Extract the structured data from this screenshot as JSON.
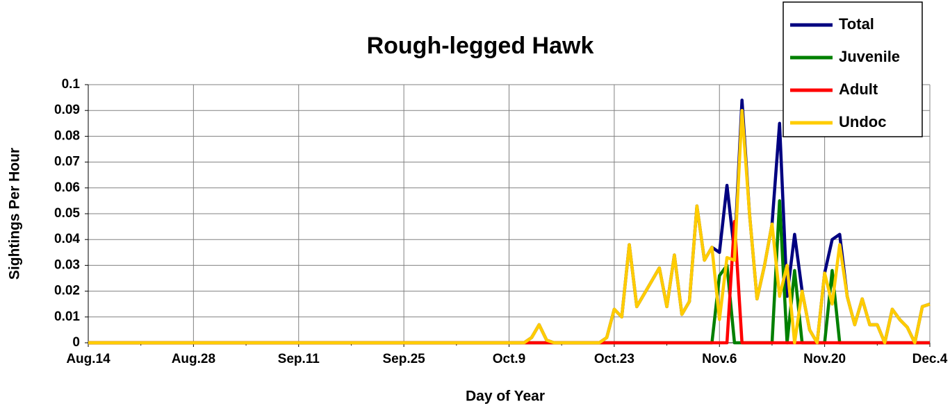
{
  "chart_data": {
    "type": "line",
    "title": "Rough-legged Hawk",
    "x_label": "Day of Year",
    "y_label": "Sightings Per Hour",
    "categories": [
      "Aug.14",
      null,
      null,
      null,
      null,
      null,
      null,
      null,
      null,
      null,
      null,
      null,
      null,
      null,
      "Aug.28",
      null,
      null,
      null,
      null,
      null,
      null,
      null,
      null,
      null,
      null,
      null,
      null,
      null,
      "Sep.11",
      null,
      null,
      null,
      null,
      null,
      null,
      null,
      null,
      null,
      null,
      null,
      null,
      null,
      "Sep.25",
      null,
      null,
      null,
      null,
      null,
      null,
      null,
      null,
      null,
      null,
      null,
      null,
      null,
      "Oct.9",
      null,
      null,
      null,
      null,
      null,
      null,
      null,
      null,
      null,
      null,
      null,
      null,
      null,
      "Oct.23",
      null,
      null,
      null,
      null,
      null,
      null,
      null,
      null,
      null,
      null,
      null,
      null,
      null,
      "Nov.6",
      null,
      null,
      null,
      null,
      null,
      null,
      null,
      null,
      null,
      null,
      null,
      null,
      null,
      "Nov.20",
      null,
      null,
      null,
      null,
      null,
      null,
      null,
      null,
      null,
      null,
      null,
      null,
      null,
      "Dec.4"
    ],
    "series": [
      {
        "name": "Total",
        "color": "#000080",
        "values": [
          0,
          0,
          0,
          0,
          0,
          0,
          0,
          0,
          0,
          0,
          0,
          0,
          0,
          0,
          0,
          0,
          0,
          0,
          0,
          0,
          0,
          0,
          0,
          0,
          0,
          0,
          0,
          0,
          0,
          0,
          0,
          0,
          0,
          0,
          0,
          0,
          0,
          0,
          0,
          0,
          0,
          0,
          0,
          0,
          0,
          0,
          0,
          0,
          0,
          0,
          0,
          0,
          0,
          0,
          0,
          0,
          0,
          0,
          0,
          0.002,
          0.007,
          0.001,
          0,
          0,
          0,
          0,
          0,
          0,
          0,
          0.002,
          0.013,
          0.01,
          0.038,
          0.014,
          0.019,
          0.024,
          0.029,
          0.014,
          0.034,
          0.011,
          0.016,
          0.053,
          0.032,
          0.037,
          0.035,
          0.061,
          0.035,
          0.094,
          0.05,
          0.017,
          0.03,
          0.046,
          0.085,
          0.018,
          0.042,
          0.02,
          0.005,
          0,
          0.027,
          0.04,
          0.042,
          0.018,
          0.007,
          0.017,
          0.007,
          0.007,
          0,
          0.013,
          0.009,
          0.006,
          0,
          0.014,
          0.015
        ]
      },
      {
        "name": "Juvenile",
        "color": "#008000",
        "values": [
          0,
          0,
          0,
          0,
          0,
          0,
          0,
          0,
          0,
          0,
          0,
          0,
          0,
          0,
          0,
          0,
          0,
          0,
          0,
          0,
          0,
          0,
          0,
          0,
          0,
          0,
          0,
          0,
          0,
          0,
          0,
          0,
          0,
          0,
          0,
          0,
          0,
          0,
          0,
          0,
          0,
          0,
          0,
          0,
          0,
          0,
          0,
          0,
          0,
          0,
          0,
          0,
          0,
          0,
          0,
          0,
          0,
          0,
          0,
          0,
          0,
          0,
          0,
          0,
          0,
          0,
          0,
          0,
          0,
          0,
          0,
          0,
          0,
          0,
          0,
          0,
          0,
          0,
          0,
          0,
          0,
          0,
          0,
          0,
          0.026,
          0.03,
          0,
          0,
          0,
          0,
          0,
          0,
          0.055,
          0,
          0.028,
          0,
          0,
          0,
          0,
          0.028,
          0,
          0,
          0,
          0,
          0,
          0,
          0,
          0,
          0,
          0,
          0,
          0,
          0
        ]
      },
      {
        "name": "Adult",
        "color": "#ff0000",
        "values": [
          0,
          0,
          0,
          0,
          0,
          0,
          0,
          0,
          0,
          0,
          0,
          0,
          0,
          0,
          0,
          0,
          0,
          0,
          0,
          0,
          0,
          0,
          0,
          0,
          0,
          0,
          0,
          0,
          0,
          0,
          0,
          0,
          0,
          0,
          0,
          0,
          0,
          0,
          0,
          0,
          0,
          0,
          0,
          0,
          0,
          0,
          0,
          0,
          0,
          0,
          0,
          0,
          0,
          0,
          0,
          0,
          0,
          0,
          0,
          0,
          0,
          0,
          0,
          0,
          0,
          0,
          0,
          0,
          0,
          0,
          0,
          0,
          0,
          0,
          0,
          0,
          0,
          0,
          0,
          0,
          0,
          0,
          0,
          0,
          0,
          0,
          0.047,
          0,
          0,
          0,
          0,
          0,
          0,
          0,
          0,
          0,
          0,
          0,
          0,
          0,
          0,
          0,
          0,
          0,
          0,
          0,
          0,
          0,
          0,
          0,
          0,
          0,
          0
        ]
      },
      {
        "name": "Undoc",
        "color": "#ffcc00",
        "values": [
          0,
          0,
          0,
          0,
          0,
          0,
          0,
          0,
          0,
          0,
          0,
          0,
          0,
          0,
          0,
          0,
          0,
          0,
          0,
          0,
          0,
          0,
          0,
          0,
          0,
          0,
          0,
          0,
          0,
          0,
          0,
          0,
          0,
          0,
          0,
          0,
          0,
          0,
          0,
          0,
          0,
          0,
          0,
          0,
          0,
          0,
          0,
          0,
          0,
          0,
          0,
          0,
          0,
          0,
          0,
          0,
          0,
          0,
          0,
          0.002,
          0.007,
          0.001,
          0,
          0,
          0,
          0,
          0,
          0,
          0,
          0.002,
          0.013,
          0.01,
          0.038,
          0.014,
          0.019,
          0.024,
          0.029,
          0.014,
          0.034,
          0.011,
          0.016,
          0.053,
          0.032,
          0.037,
          0.009,
          0.033,
          0.032,
          0.09,
          0.05,
          0.017,
          0.03,
          0.046,
          0.018,
          0.03,
          0,
          0.02,
          0.005,
          0,
          0.027,
          0.015,
          0.038,
          0.018,
          0.007,
          0.017,
          0.007,
          0.007,
          0,
          0.013,
          0.009,
          0.006,
          0,
          0.014,
          0.015
        ]
      }
    ],
    "ylim": [
      0,
      0.1
    ],
    "yticks": [
      0,
      0.01,
      0.02,
      0.03,
      0.04,
      0.05,
      0.06,
      0.07,
      0.08,
      0.09,
      0.1
    ],
    "grid": true,
    "legend": "top-right"
  }
}
